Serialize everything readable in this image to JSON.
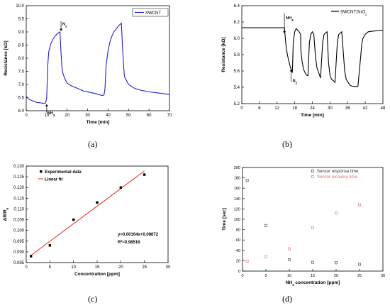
{
  "panels": [
    "(a)",
    "(b)",
    "(c)",
    "(d)"
  ],
  "chart_data": [
    {
      "type": "line",
      "legend": [
        "SWCNT"
      ],
      "xlabel": "Time [min]",
      "ylabel": "Resistance [kΩ]",
      "xlim": [
        0,
        70
      ],
      "ylim": [
        6.0,
        10.0
      ],
      "xticks": [
        "0",
        "10",
        "20",
        "30",
        "40",
        "50",
        "60",
        "70"
      ],
      "yticks": [
        "6.0",
        "6.5",
        "7.0",
        "7.5",
        "8.0",
        "8.5",
        "9.0",
        "9.5",
        "10.0"
      ],
      "annotations": [
        {
          "text": "NH",
          "sub": "3",
          "x": 10,
          "y": 6.25
        },
        {
          "text": "N",
          "sub": "2",
          "x": 17,
          "y": 9.2
        }
      ],
      "series": [
        {
          "color": "#1f1fd6",
          "x": [
            0,
            1,
            3,
            5,
            7,
            9,
            9.5,
            10,
            10.5,
            11,
            12,
            13,
            14,
            15,
            16,
            16.5,
            17,
            17.5,
            18,
            19,
            20,
            22,
            25,
            28,
            31,
            34,
            37,
            38,
            38.5,
            39,
            40,
            41,
            42,
            43,
            44,
            45,
            46,
            46.5,
            47,
            47.5,
            48,
            50,
            53,
            56,
            60,
            64,
            67,
            70
          ],
          "y": [
            6.55,
            6.45,
            6.38,
            6.32,
            6.3,
            6.28,
            6.3,
            6.5,
            7.7,
            8.25,
            8.55,
            8.72,
            8.83,
            8.92,
            8.98,
            9.0,
            8.2,
            7.6,
            7.4,
            7.2,
            7.05,
            6.95,
            6.85,
            6.75,
            6.7,
            6.65,
            6.58,
            6.6,
            6.85,
            7.7,
            8.3,
            8.65,
            8.87,
            9.02,
            9.12,
            9.22,
            9.3,
            9.33,
            8.5,
            7.8,
            7.3,
            7.0,
            6.85,
            6.78,
            6.72,
            6.68,
            6.65,
            6.62
          ]
        }
      ]
    },
    {
      "type": "line",
      "legend": [
        "SWCNT:SnO2"
      ],
      "xlabel": "Time [min]",
      "ylabel": "Resistance [kΩ]",
      "xlim": [
        0,
        48
      ],
      "ylim": [
        5.2,
        6.4
      ],
      "xticks": [
        "0",
        "6",
        "12",
        "18",
        "24",
        "30",
        "36",
        "42",
        "48"
      ],
      "yticks": [
        "5.2",
        "5.4",
        "5.6",
        "5.8",
        "6.0",
        "6.2",
        "6.4"
      ],
      "annotations": [
        {
          "text": "NH",
          "sub": "3",
          "x": 14.5,
          "y": 6.2
        },
        {
          "text": "N",
          "sub": "2",
          "x": 16.8,
          "y": 5.5
        }
      ],
      "series": [
        {
          "color": "#000000",
          "x": [
            0,
            5,
            10,
            14.5,
            15,
            15.5,
            16,
            16.5,
            17,
            17.2,
            17.5,
            18,
            18.5,
            19,
            19.5,
            20,
            20.1,
            20.5,
            21,
            21.5,
            22,
            22.5,
            23,
            23.5,
            24,
            24.5,
            25,
            25.5,
            26.5,
            26.8,
            27.5,
            28,
            29,
            29.5,
            30,
            30.5,
            31.5,
            31.7,
            32.5,
            33,
            34,
            35,
            35.5,
            36.5,
            37,
            38,
            39.5,
            40.5,
            40.8,
            41.2,
            42,
            43,
            45,
            48
          ],
          "y": [
            6.13,
            6.13,
            6.13,
            6.13,
            5.92,
            5.8,
            5.72,
            5.65,
            5.6,
            5.58,
            5.95,
            6.08,
            6.12,
            6.1,
            6.08,
            6.05,
            5.85,
            5.72,
            5.62,
            5.58,
            5.55,
            5.54,
            5.95,
            6.05,
            6.08,
            6.05,
            5.8,
            5.65,
            5.54,
            5.52,
            5.95,
            6.05,
            6.08,
            5.7,
            5.55,
            5.5,
            5.47,
            5.46,
            5.95,
            6.05,
            6.08,
            5.6,
            5.5,
            5.44,
            5.42,
            5.41,
            5.41,
            5.8,
            5.93,
            6.0,
            6.05,
            6.08,
            6.09,
            6.1
          ]
        }
      ]
    },
    {
      "type": "scatter",
      "legend": [
        "Experimental data",
        "Linear fit"
      ],
      "xlabel": "Concentration [ppm]",
      "ylabel": "ΔR/R0",
      "xlim": [
        0,
        30
      ],
      "ylim": [
        0.085,
        0.13
      ],
      "xticks": [
        "0",
        "5",
        "10",
        "15",
        "20",
        "25",
        "30"
      ],
      "yticks": [
        "0.085",
        "0.090",
        "0.095",
        "0.100",
        "0.105",
        "0.110",
        "0.115",
        "0.120",
        "0.125",
        "0.130"
      ],
      "equation": "y=0.00164x+0.08672",
      "r2": "R²=0.98516",
      "series": [
        {
          "name": "Experimental data",
          "color": "#000000",
          "x": [
            1,
            5,
            10,
            15,
            20,
            25
          ],
          "y": [
            0.088,
            0.093,
            0.105,
            0.113,
            0.12,
            0.126
          ]
        },
        {
          "name": "Linear fit",
          "color": "#e8231e",
          "x": [
            1,
            25
          ],
          "y": [
            0.08836,
            0.12772
          ]
        }
      ]
    },
    {
      "type": "scatter",
      "legend": [
        "Sensor response time",
        "Sensor recovery time"
      ],
      "xlabel": "NH3 concentration [ppm]",
      "ylabel": "Time [sec]",
      "xlim": [
        0,
        30
      ],
      "ylim": [
        0,
        200
      ],
      "xticks": [
        "0",
        "5",
        "10",
        "15",
        "20",
        "25",
        "30"
      ],
      "yticks": [
        "0",
        "20",
        "40",
        "60",
        "80",
        "100",
        "120",
        "140",
        "160",
        "180",
        "200"
      ],
      "series": [
        {
          "name": "Sensor response time",
          "color": "#333333",
          "x": [
            1,
            5,
            10,
            15,
            20,
            25
          ],
          "y": [
            175,
            88,
            22,
            17,
            16,
            13
          ]
        },
        {
          "name": "Sensor recovery time",
          "color": "#e06a6a",
          "x": [
            1,
            5,
            10,
            15,
            20,
            25
          ],
          "y": [
            19,
            28,
            43,
            84,
            112,
            128
          ]
        }
      ]
    }
  ]
}
